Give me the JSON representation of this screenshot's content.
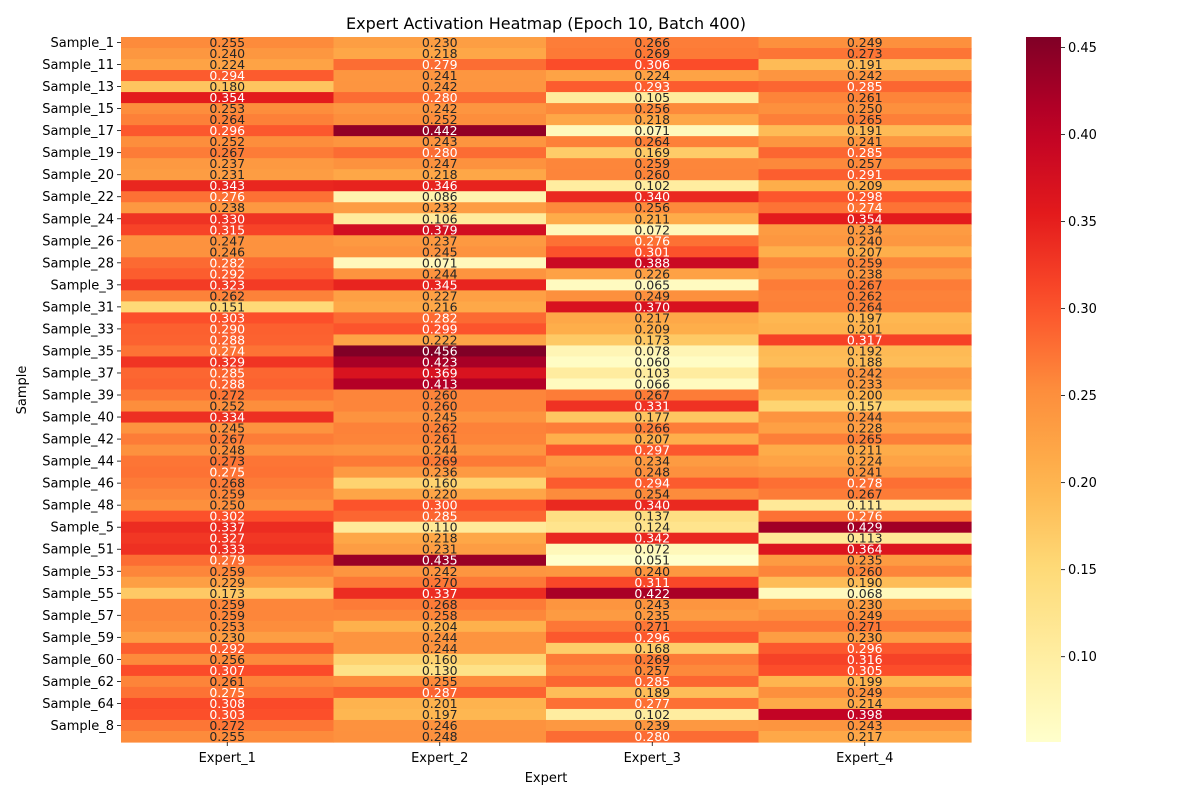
{
  "chart_data": {
    "type": "heatmap",
    "title": "Expert Activation Heatmap (Epoch 10, Batch 400)",
    "xlabel": "Expert",
    "ylabel": "Sample",
    "colormap": "YlOrRd",
    "color_range": [
      0.051,
      0.456
    ],
    "colorbar_ticks": [
      "0.10",
      "0.15",
      "0.20",
      "0.25",
      "0.30",
      "0.35",
      "0.40",
      "0.45"
    ],
    "columns": [
      "Expert_1",
      "Expert_2",
      "Expert_3",
      "Expert_4"
    ],
    "ytick_labels": [
      "Sample_1",
      "Sample_11",
      "Sample_13",
      "Sample_15",
      "Sample_17",
      "Sample_19",
      "Sample_20",
      "Sample_22",
      "Sample_24",
      "Sample_26",
      "Sample_28",
      "Sample_3",
      "Sample_31",
      "Sample_33",
      "Sample_35",
      "Sample_37",
      "Sample_39",
      "Sample_40",
      "Sample_42",
      "Sample_44",
      "Sample_46",
      "Sample_48",
      "Sample_5",
      "Sample_51",
      "Sample_53",
      "Sample_55",
      "Sample_57",
      "Sample_59",
      "Sample_60",
      "Sample_62",
      "Sample_64",
      "Sample_8"
    ],
    "values": [
      [
        0.255,
        0.23,
        0.266,
        0.249
      ],
      [
        0.24,
        0.218,
        0.269,
        0.273
      ],
      [
        0.224,
        0.279,
        0.306,
        0.191
      ],
      [
        0.294,
        0.241,
        0.224,
        0.242
      ],
      [
        0.18,
        0.242,
        0.293,
        0.285
      ],
      [
        0.354,
        0.28,
        0.105,
        0.261
      ],
      [
        0.253,
        0.242,
        0.256,
        0.25
      ],
      [
        0.264,
        0.252,
        0.218,
        0.265
      ],
      [
        0.296,
        0.442,
        0.071,
        0.191
      ],
      [
        0.252,
        0.243,
        0.264,
        0.241
      ],
      [
        0.267,
        0.28,
        0.169,
        0.285
      ],
      [
        0.237,
        0.247,
        0.259,
        0.257
      ],
      [
        0.231,
        0.218,
        0.26,
        0.291
      ],
      [
        0.343,
        0.346,
        0.102,
        0.209
      ],
      [
        0.276,
        0.086,
        0.34,
        0.298
      ],
      [
        0.238,
        0.232,
        0.256,
        0.274
      ],
      [
        0.33,
        0.106,
        0.211,
        0.354
      ],
      [
        0.315,
        0.379,
        0.072,
        0.234
      ],
      [
        0.247,
        0.237,
        0.276,
        0.24
      ],
      [
        0.246,
        0.245,
        0.301,
        0.207
      ],
      [
        0.282,
        0.071,
        0.388,
        0.259
      ],
      [
        0.292,
        0.244,
        0.226,
        0.238
      ],
      [
        0.323,
        0.345,
        0.065,
        0.267
      ],
      [
        0.262,
        0.227,
        0.249,
        0.262
      ],
      [
        0.151,
        0.216,
        0.37,
        0.264
      ],
      [
        0.303,
        0.282,
        0.217,
        0.197
      ],
      [
        0.29,
        0.299,
        0.209,
        0.201
      ],
      [
        0.288,
        0.222,
        0.173,
        0.317
      ],
      [
        0.274,
        0.456,
        0.078,
        0.192
      ],
      [
        0.329,
        0.423,
        0.06,
        0.188
      ],
      [
        0.285,
        0.369,
        0.103,
        0.242
      ],
      [
        0.288,
        0.413,
        0.066,
        0.233
      ],
      [
        0.272,
        0.26,
        0.267,
        0.2
      ],
      [
        0.252,
        0.26,
        0.331,
        0.157
      ],
      [
        0.334,
        0.245,
        0.177,
        0.244
      ],
      [
        0.245,
        0.262,
        0.266,
        0.228
      ],
      [
        0.267,
        0.261,
        0.207,
        0.265
      ],
      [
        0.248,
        0.244,
        0.297,
        0.211
      ],
      [
        0.273,
        0.269,
        0.234,
        0.224
      ],
      [
        0.275,
        0.236,
        0.248,
        0.241
      ],
      [
        0.268,
        0.16,
        0.294,
        0.278
      ],
      [
        0.259,
        0.22,
        0.254,
        0.267
      ],
      [
        0.25,
        0.3,
        0.34,
        0.111
      ],
      [
        0.302,
        0.285,
        0.137,
        0.276
      ],
      [
        0.337,
        0.11,
        0.124,
        0.429
      ],
      [
        0.327,
        0.218,
        0.342,
        0.113
      ],
      [
        0.333,
        0.231,
        0.072,
        0.364
      ],
      [
        0.279,
        0.435,
        0.051,
        0.235
      ],
      [
        0.259,
        0.242,
        0.24,
        0.26
      ],
      [
        0.229,
        0.27,
        0.311,
        0.19
      ],
      [
        0.173,
        0.337,
        0.422,
        0.068
      ],
      [
        0.259,
        0.268,
        0.243,
        0.23
      ],
      [
        0.259,
        0.258,
        0.235,
        0.249
      ],
      [
        0.253,
        0.204,
        0.271,
        0.271
      ],
      [
        0.23,
        0.244,
        0.296,
        0.23
      ],
      [
        0.292,
        0.244,
        0.168,
        0.296
      ],
      [
        0.256,
        0.16,
        0.269,
        0.316
      ],
      [
        0.307,
        0.13,
        0.257,
        0.305
      ],
      [
        0.261,
        0.255,
        0.285,
        0.199
      ],
      [
        0.275,
        0.287,
        0.189,
        0.249
      ],
      [
        0.308,
        0.201,
        0.277,
        0.214
      ],
      [
        0.303,
        0.197,
        0.102,
        0.398
      ],
      [
        0.272,
        0.246,
        0.239,
        0.243
      ],
      [
        0.255,
        0.248,
        0.28,
        0.217
      ]
    ]
  }
}
